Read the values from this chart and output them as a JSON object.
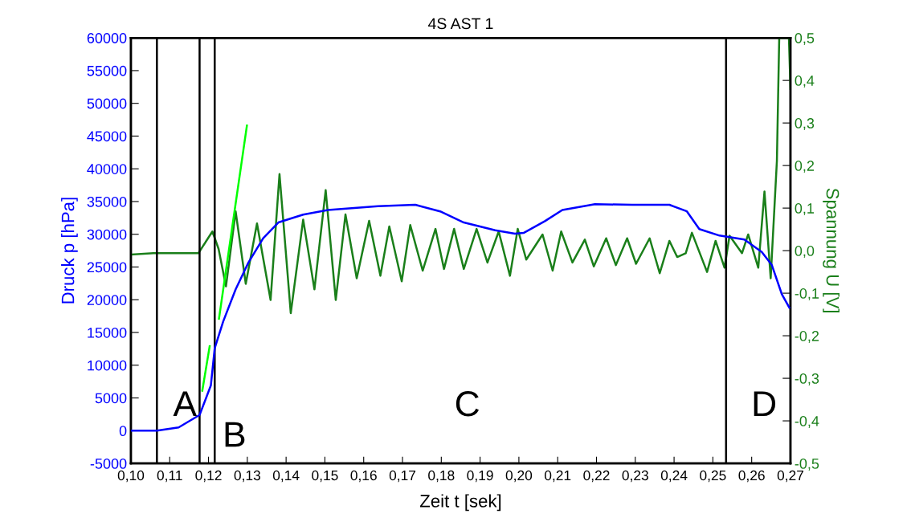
{
  "chart_data": {
    "type": "line",
    "title": "4S AST 1",
    "xlabel": "Zeit t [sek]",
    "ylabel": "Druck p [hPa]",
    "y2label": "Spannung U [V]",
    "xlim": [
      0.1,
      0.27
    ],
    "xticks": [
      {
        "value": 0.1,
        "label": "0,10"
      },
      {
        "value": 0.11,
        "label": "0,11"
      },
      {
        "value": 0.12,
        "label": "0,12"
      },
      {
        "value": 0.13,
        "label": "0,13"
      },
      {
        "value": 0.14,
        "label": "0,14"
      },
      {
        "value": 0.15,
        "label": "0,15"
      },
      {
        "value": 0.16,
        "label": "0,16"
      },
      {
        "value": 0.17,
        "label": "0,17"
      },
      {
        "value": 0.18,
        "label": "0,18"
      },
      {
        "value": 0.19,
        "label": "0,19"
      },
      {
        "value": 0.2,
        "label": "0,20"
      },
      {
        "value": 0.21,
        "label": "0,21"
      },
      {
        "value": 0.22,
        "label": "0,22"
      },
      {
        "value": 0.23,
        "label": "0,23"
      },
      {
        "value": 0.24,
        "label": "0,24"
      },
      {
        "value": 0.25,
        "label": "0,25"
      },
      {
        "value": 0.26,
        "label": "0,26"
      },
      {
        "value": 0.27,
        "label": "0,27"
      }
    ],
    "ylim": [
      -5000,
      60000
    ],
    "yticks": [
      -5000,
      0,
      5000,
      10000,
      15000,
      20000,
      25000,
      30000,
      35000,
      40000,
      45000,
      50000,
      55000,
      60000
    ],
    "y2lim": [
      -0.5,
      0.5
    ],
    "y2ticks": [
      {
        "value": -0.5,
        "label": "-0,5"
      },
      {
        "value": -0.4,
        "label": "-0,4"
      },
      {
        "value": -0.3,
        "label": "-0,3"
      },
      {
        "value": -0.2,
        "label": "-0,2"
      },
      {
        "value": -0.1,
        "label": "-0,1"
      },
      {
        "value": 0.0,
        "label": "0,0"
      },
      {
        "value": 0.1,
        "label": "0,1"
      },
      {
        "value": 0.2,
        "label": "0,2"
      },
      {
        "value": 0.3,
        "label": "0,3"
      },
      {
        "value": 0.4,
        "label": "0,4"
      },
      {
        "value": 0.5,
        "label": "0,5"
      }
    ],
    "series": [
      {
        "color": "#1a7f1a",
        "axis": "y2",
        "x": [
          0.1001,
          0.1058,
          0.1123,
          0.1174,
          0.121,
          0.1226,
          0.1245,
          0.127,
          0.1296,
          0.1325,
          0.136,
          0.1383,
          0.1412,
          0.1444,
          0.1473,
          0.1502,
          0.1528,
          0.1553,
          0.1582,
          0.1614,
          0.1643,
          0.1666,
          0.1698,
          0.172,
          0.1752,
          0.1785,
          0.1807,
          0.1833,
          0.1858,
          0.1891,
          0.1919,
          0.1948,
          0.1977,
          0.1997,
          0.2019,
          0.2061,
          0.2087,
          0.2109,
          0.2138,
          0.217,
          0.2193,
          0.2225,
          0.225,
          0.2279,
          0.2302,
          0.2337,
          0.2363,
          0.2388,
          0.2408,
          0.243,
          0.2446,
          0.2485,
          0.2507,
          0.253,
          0.2543,
          0.2575,
          0.2591,
          0.2617,
          0.2633,
          0.2649,
          0.2665,
          0.2671,
          0.2696,
          0.27
        ],
        "values": [
          -0.009,
          -0.006,
          -0.006,
          -0.006,
          0.045,
          0.004,
          -0.084,
          0.092,
          -0.078,
          0.064,
          -0.116,
          0.18,
          -0.147,
          0.073,
          -0.091,
          0.142,
          -0.116,
          0.085,
          -0.065,
          0.07,
          -0.059,
          0.057,
          -0.072,
          0.06,
          -0.047,
          0.051,
          -0.043,
          0.051,
          -0.043,
          0.051,
          -0.028,
          0.045,
          -0.059,
          0.051,
          -0.021,
          0.038,
          -0.047,
          0.045,
          -0.028,
          0.026,
          -0.037,
          0.029,
          -0.034,
          0.029,
          -0.031,
          0.029,
          -0.053,
          0.023,
          -0.015,
          -0.006,
          0.042,
          -0.05,
          0.023,
          -0.04,
          0.035,
          -0.006,
          0.038,
          -0.04,
          0.139,
          -0.065,
          0.211,
          0.5,
          0.5,
          0.38
        ]
      },
      {
        "color": "#0000ff",
        "x": [
          0.1,
          0.1067,
          0.1123,
          0.1177,
          0.1206,
          0.1216,
          0.1238,
          0.127,
          0.1303,
          0.1341,
          0.138,
          0.1444,
          0.1508,
          0.1637,
          0.1733,
          0.1797,
          0.1858,
          0.1939,
          0.199,
          0.2012,
          0.2067,
          0.2112,
          0.2196,
          0.2292,
          0.2388,
          0.2433,
          0.2465,
          0.2517,
          0.2581,
          0.2626,
          0.2652,
          0.2678,
          0.2697
        ],
        "values": [
          0,
          0,
          500,
          2400,
          6900,
          12600,
          16700,
          21600,
          25700,
          29400,
          31800,
          33000,
          33700,
          34300,
          34500,
          33500,
          31800,
          30600,
          30100,
          30200,
          32000,
          33700,
          34600,
          34500,
          34500,
          33500,
          30800,
          29800,
          29200,
          27300,
          25300,
          20800,
          18800
        ]
      },
      {
        "color": "#00ff00",
        "x": [
          0.1184,
          0.1203,
          0.1215,
          0.1227,
          0.1299
        ],
        "values": [
          6100,
          12900,
          null,
          17100,
          46600
        ]
      }
    ],
    "ref_lines": [
      {
        "axis": "x",
        "value": 0.1067,
        "color": "#000000"
      },
      {
        "axis": "x",
        "value": 0.1177,
        "color": "#000000"
      },
      {
        "axis": "x",
        "value": 0.1216,
        "color": "#000000"
      },
      {
        "axis": "x",
        "value": 0.2534,
        "color": "#000000"
      }
    ],
    "annotations": [
      "A",
      "B",
      "C",
      "D"
    ]
  }
}
